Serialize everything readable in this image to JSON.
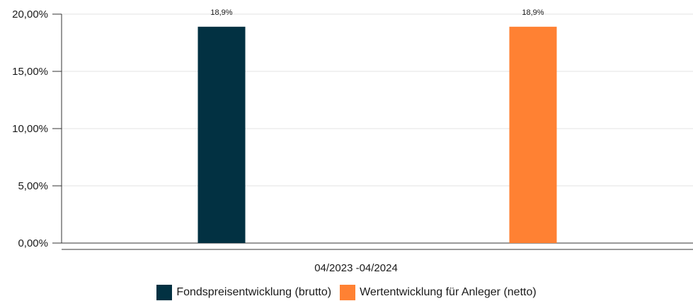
{
  "chart_data": {
    "type": "bar",
    "categories": [
      "04/2023 -04/2024"
    ],
    "series": [
      {
        "name": "Fondspreisentwicklung (brutto)",
        "values": [
          18.9
        ],
        "color": "#023142",
        "data_label": "18,9%"
      },
      {
        "name": "Wertentwicklung für Anleger (netto)",
        "values": [
          18.9
        ],
        "color": "#ff8133",
        "data_label": "18,9%"
      }
    ],
    "ylim": [
      0,
      20
    ],
    "yticks": [
      {
        "value": 0,
        "label": "0,00%"
      },
      {
        "value": 5,
        "label": "5,00%"
      },
      {
        "value": 10,
        "label": "10,00%"
      },
      {
        "value": 15,
        "label": "15,00%"
      },
      {
        "value": 20,
        "label": "20,00%"
      }
    ],
    "grid": true,
    "legend_position": "bottom-center",
    "xlabel": "",
    "ylabel": "",
    "title": ""
  }
}
